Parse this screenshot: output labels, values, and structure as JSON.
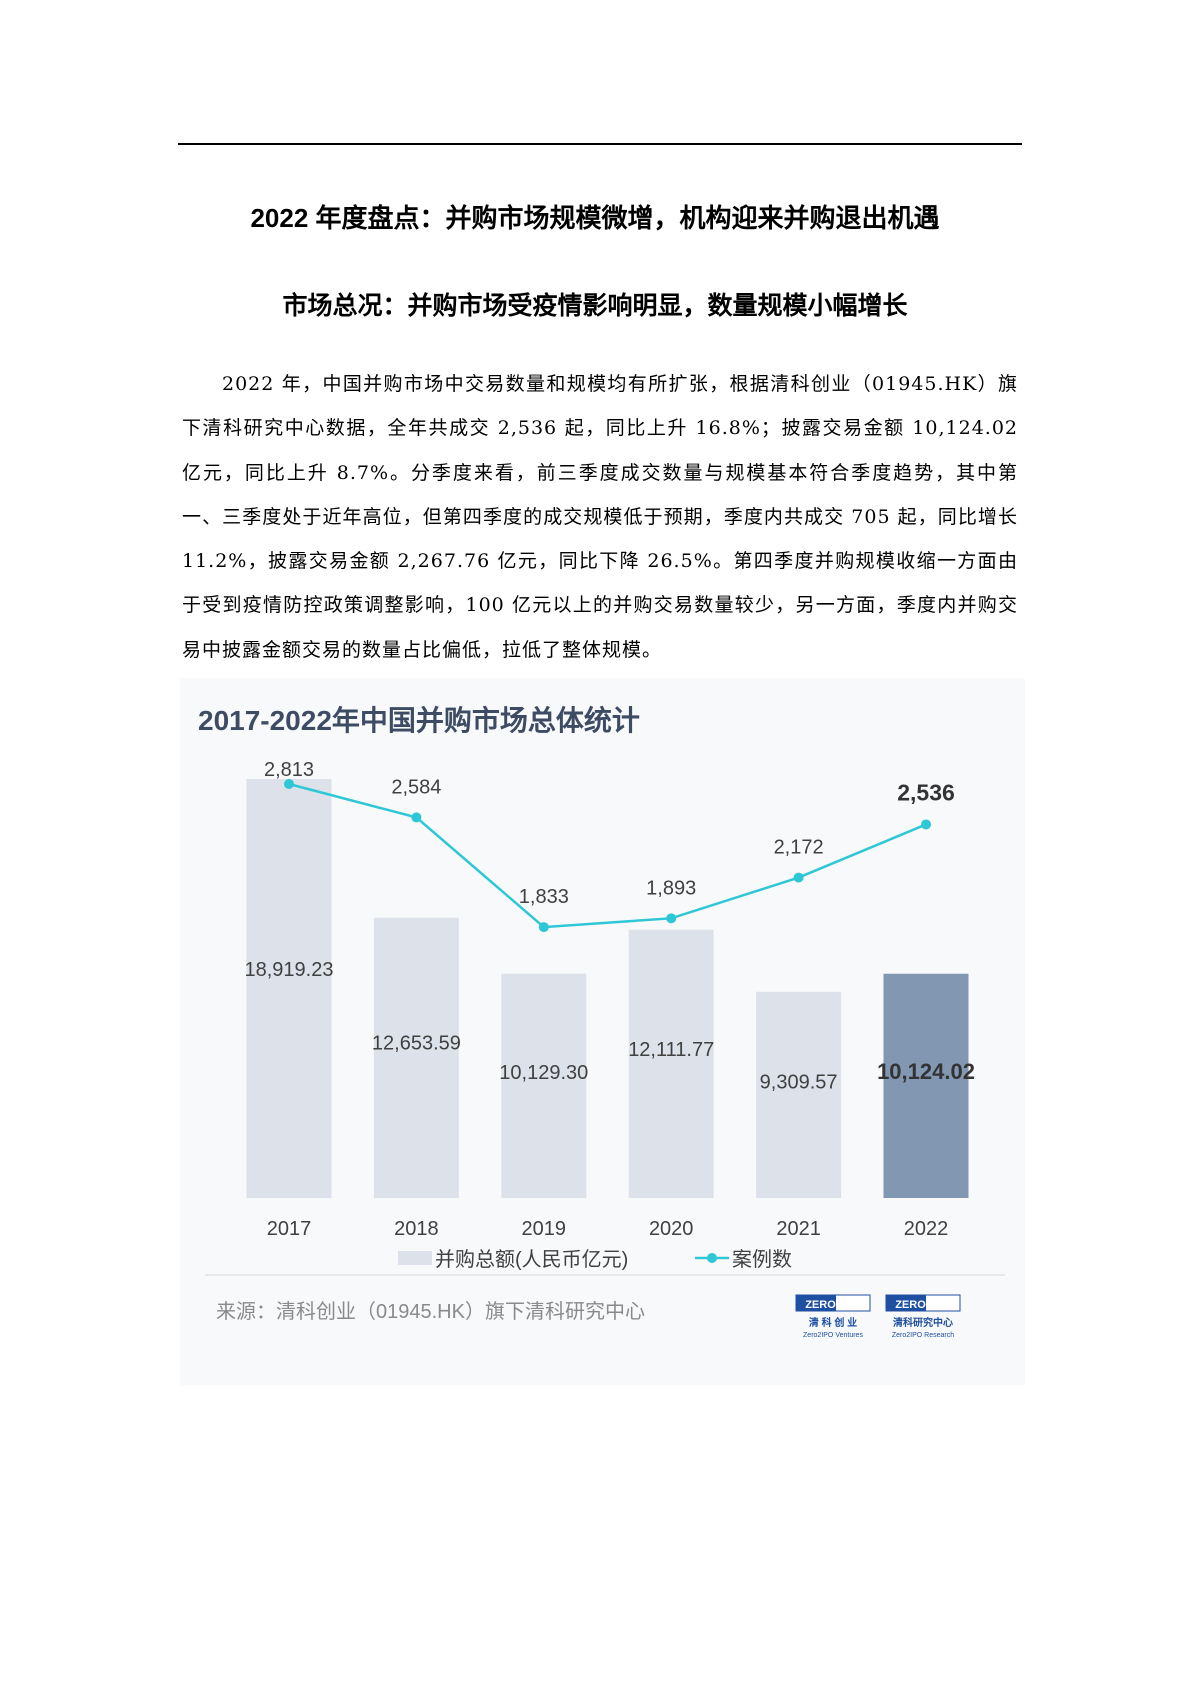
{
  "document": {
    "title": "2022 年度盘点：并购市场规模微增，机构迎来并购退出机遇",
    "section_heading": "市场总况：并购市场受疫情影响明显，数量规模小幅增长",
    "paragraph": "2022 年，中国并购市场中交易数量和规模均有所扩张，根据清科创业（01945.HK）旗下清科研究中心数据，全年共成交 2,536 起，同比上升 16.8%；披露交易金额 10,124.02 亿元，同比上升 8.7%。分季度来看，前三季度成交数量与规模基本符合季度趋势，其中第一、三季度处于近年高位，但第四季度的成交规模低于预期，季度内共成交 705 起，同比增长 11.2%，披露交易金额 2,267.76 亿元，同比下降 26.5%。第四季度并购规模收缩一方面由于受到疫情防控政策调整影响，100 亿元以上的并购交易数量较少，另一方面，季度内并购交易中披露金额交易的数量占比偏低，拉低了整体规模。"
  },
  "chart_data": {
    "type": "bar+line",
    "title": "2017-2022年中国并购市场总体统计",
    "categories": [
      "2017",
      "2018",
      "2019",
      "2020",
      "2021",
      "2022"
    ],
    "series": [
      {
        "name": "并购总额(人民币亿元)",
        "type": "bar",
        "values": [
          18919.23,
          12653.59,
          10129.3,
          12111.77,
          9309.57,
          10124.02
        ],
        "labels": [
          "18,919.23",
          "12,653.59",
          "10,129.30",
          "12,111.77",
          "9,309.57",
          "10,124.02"
        ],
        "color": "#dde1ea",
        "highlight_color": "#8197b2"
      },
      {
        "name": "案例数",
        "type": "line",
        "values": [
          2813,
          2584,
          1833,
          1893,
          2172,
          2536
        ],
        "labels": [
          "2,813",
          "2,584",
          "1,833",
          "1,893",
          "2,172",
          "2,536"
        ],
        "color": "#2ec7d6"
      }
    ],
    "legend_position": "bottom",
    "grid": false,
    "source": "来源：清科创业（01945.HK）旗下清科研究中心",
    "logos": [
      {
        "brand": "ZERO2IPO",
        "line1": "清 科 创 业",
        "line2": "Zero2IPO Ventures"
      },
      {
        "brand": "ZERO2IPO",
        "line1": "清科研究中心",
        "line2": "Zero2IPO Research"
      }
    ]
  }
}
